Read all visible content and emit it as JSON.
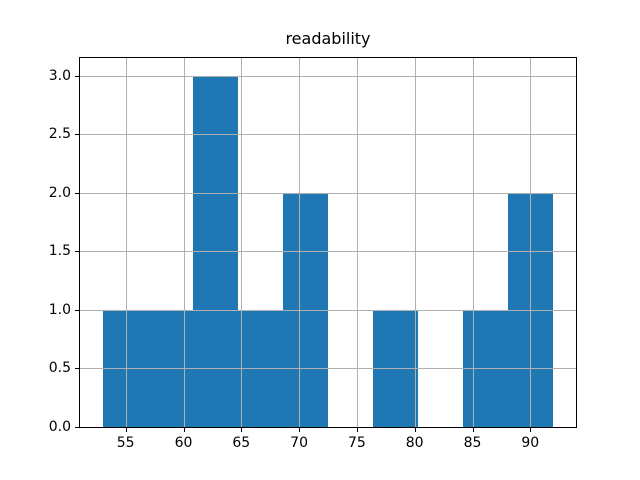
{
  "chart_data": {
    "type": "bar",
    "subtype": "histogram",
    "title": "readability",
    "xlabel": "",
    "ylabel": "",
    "bin_edges": [
      53.0,
      56.9,
      60.8,
      64.7,
      68.6,
      72.5,
      76.4,
      80.3,
      84.2,
      88.1,
      92.0
    ],
    "counts": [
      1,
      1,
      3,
      1,
      2,
      0,
      1,
      0,
      1,
      2
    ],
    "xlim": [
      51.05,
      93.95
    ],
    "ylim": [
      0,
      3.15
    ],
    "xticks": [
      55,
      60,
      65,
      70,
      75,
      80,
      85,
      90
    ],
    "xtick_labels": [
      "55",
      "60",
      "65",
      "70",
      "75",
      "80",
      "85",
      "90"
    ],
    "yticks": [
      0.0,
      0.5,
      1.0,
      1.5,
      2.0,
      2.5,
      3.0
    ],
    "ytick_labels": [
      "0.0",
      "0.5",
      "1.0",
      "1.5",
      "2.0",
      "2.5",
      "3.0"
    ],
    "grid": true,
    "legend": null,
    "bar_color": "#1f77b4",
    "grid_color": "#b0b0b0",
    "spine_color": "#000000",
    "text_color": "#000000",
    "background_color": "#ffffff"
  }
}
